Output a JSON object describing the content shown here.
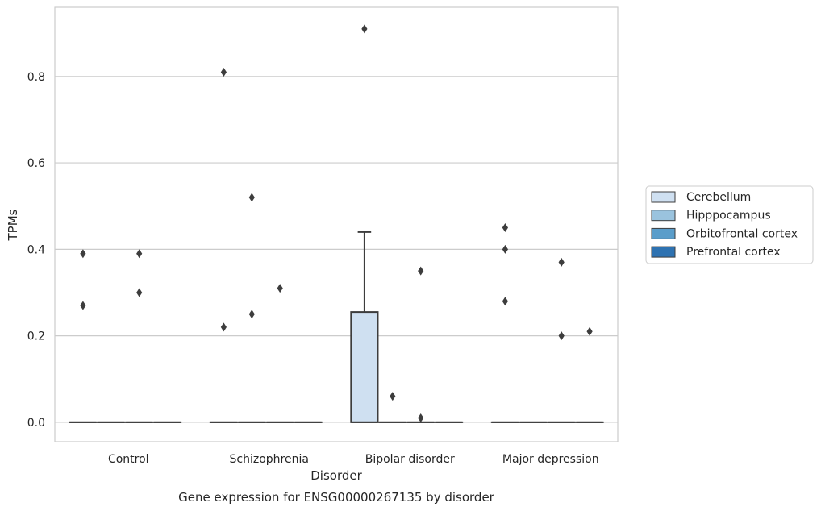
{
  "chart_data": {
    "type": "box",
    "title": "Gene expression for ENSG00000267135 by disorder",
    "xlabel": "Disorder",
    "ylabel": "TPMs",
    "categories": [
      "Control",
      "Schizophrenia",
      "Bipolar disorder",
      "Major depression"
    ],
    "ylim": [
      -0.045,
      0.96
    ],
    "yticks": [
      "0.0",
      "0.2",
      "0.4",
      "0.6",
      "0.8"
    ],
    "ytick_values": [
      0.0,
      0.2,
      0.4,
      0.6,
      0.8
    ],
    "grid": "horizontal",
    "legend_position": "right",
    "series": [
      {
        "name": "Cerebellum",
        "color": "#cfe0f1",
        "boxes": [
          {
            "q1": 0,
            "median": 0,
            "q3": 0,
            "whislo": 0,
            "whishi": 0,
            "fliers": [
              0.39,
              0.27
            ]
          },
          {
            "q1": 0,
            "median": 0,
            "q3": 0,
            "whislo": 0,
            "whishi": 0,
            "fliers": [
              0.81,
              0.22
            ]
          },
          {
            "q1": 0,
            "median": 0,
            "q3": 0.255,
            "whislo": 0,
            "whishi": 0.44,
            "fliers": [
              0.91
            ]
          },
          {
            "q1": 0,
            "median": 0,
            "q3": 0,
            "whislo": 0,
            "whishi": 0,
            "fliers": [
              0.45,
              0.4,
              0.28
            ]
          }
        ]
      },
      {
        "name": "Hipppocampus",
        "color": "#9ac3de",
        "boxes": [
          {
            "q1": 0,
            "median": 0,
            "q3": 0,
            "whislo": 0,
            "whishi": 0,
            "fliers": []
          },
          {
            "q1": 0,
            "median": 0,
            "q3": 0,
            "whislo": 0,
            "whishi": 0,
            "fliers": [
              0.52,
              0.25
            ]
          },
          {
            "q1": 0,
            "median": 0,
            "q3": 0,
            "whislo": 0,
            "whishi": 0,
            "fliers": [
              0.06
            ]
          },
          {
            "q1": 0,
            "median": 0,
            "q3": 0,
            "whislo": 0,
            "whishi": 0,
            "fliers": []
          }
        ]
      },
      {
        "name": "Orbitofrontal cortex",
        "color": "#5a9dca",
        "boxes": [
          {
            "q1": 0,
            "median": 0,
            "q3": 0,
            "whislo": 0,
            "whishi": 0,
            "fliers": [
              0.39,
              0.3
            ]
          },
          {
            "q1": 0,
            "median": 0,
            "q3": 0,
            "whislo": 0,
            "whishi": 0,
            "fliers": [
              0.31
            ]
          },
          {
            "q1": 0,
            "median": 0,
            "q3": 0,
            "whislo": 0,
            "whishi": 0,
            "fliers": [
              0.35,
              0.01
            ]
          },
          {
            "q1": 0,
            "median": 0,
            "q3": 0,
            "whislo": 0,
            "whishi": 0,
            "fliers": [
              0.37,
              0.2
            ]
          }
        ]
      },
      {
        "name": "Prefrontal cortex",
        "color": "#2e72b1",
        "boxes": [
          {
            "q1": 0,
            "median": 0,
            "q3": 0,
            "whislo": 0,
            "whishi": 0,
            "fliers": []
          },
          {
            "q1": 0,
            "median": 0,
            "q3": 0,
            "whislo": 0,
            "whishi": 0,
            "fliers": []
          },
          {
            "q1": 0,
            "median": 0,
            "q3": 0,
            "whislo": 0,
            "whishi": 0,
            "fliers": []
          },
          {
            "q1": 0,
            "median": 0,
            "q3": 0,
            "whislo": 0,
            "whishi": 0,
            "fliers": [
              0.21
            ]
          }
        ]
      }
    ]
  }
}
